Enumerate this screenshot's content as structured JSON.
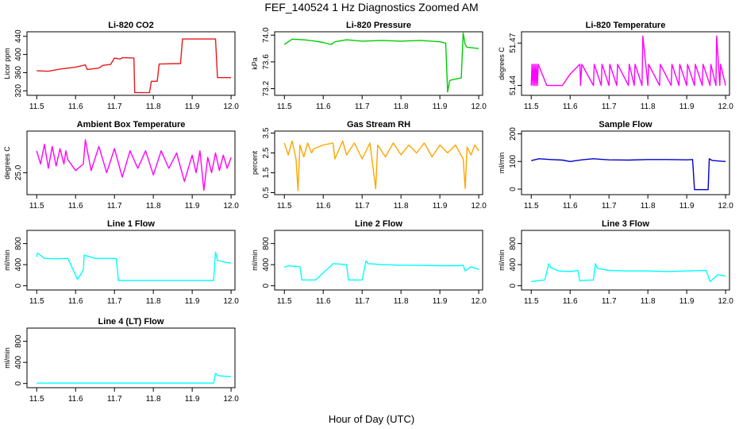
{
  "figure": {
    "title": "FEF_140524  1 Hz Diagnostics Zoomed AM",
    "xlabel": "Hour of Day (UTC)"
  },
  "chart_data": [
    {
      "type": "line",
      "title": "Li-820 CO2",
      "ylabel": "Licor ppm",
      "color": "#e41a1c",
      "xlim": [
        11.475,
        12.01
      ],
      "ylim": [
        310,
        450
      ],
      "x_ticks": [
        "11.5",
        "11.6",
        "11.7",
        "11.8",
        "11.9",
        "12.0"
      ],
      "y_ticks": [
        {
          "v": 320,
          "label": "320"
        },
        {
          "v": 360,
          "label": "360"
        },
        {
          "v": 400,
          "label": "400"
        },
        {
          "v": 440,
          "label": "440"
        }
      ],
      "x": [
        11.5,
        11.53,
        11.56,
        11.6,
        11.625,
        11.63,
        11.66,
        11.67,
        11.69,
        11.7,
        11.715,
        11.72,
        11.75,
        11.752,
        11.79,
        11.795,
        11.81,
        11.815,
        11.87,
        11.875,
        11.96,
        11.965,
        12.0
      ],
      "y": [
        364,
        363,
        368,
        372,
        377,
        367,
        370,
        376,
        378,
        392,
        390,
        393,
        392,
        316,
        316,
        341,
        341,
        379,
        380,
        434,
        434,
        349,
        349
      ]
    },
    {
      "type": "line",
      "title": "Li-820 Pressure",
      "ylabel": "kPa",
      "color": "#00cc00",
      "xlim": [
        11.475,
        12.01
      ],
      "ylim": [
        73.1,
        74.05
      ],
      "x_ticks": [
        "11.5",
        "11.6",
        "11.7",
        "11.8",
        "11.9",
        "12.0"
      ],
      "y_ticks": [
        {
          "v": 73.2,
          "label": "73.2"
        },
        {
          "v": 73.6,
          "label": "73.6"
        },
        {
          "v": 74.0,
          "label": "74.0"
        }
      ],
      "x": [
        11.5,
        11.52,
        11.55,
        11.58,
        11.6,
        11.62,
        11.63,
        11.66,
        11.7,
        11.75,
        11.8,
        11.85,
        11.9,
        11.915,
        11.92,
        11.925,
        11.93,
        11.955,
        11.96,
        11.965,
        11.97,
        12.0
      ],
      "y": [
        73.86,
        73.94,
        73.93,
        73.91,
        73.89,
        73.86,
        73.9,
        73.93,
        73.91,
        73.92,
        73.91,
        73.92,
        73.9,
        73.88,
        73.15,
        73.32,
        73.33,
        73.36,
        74.03,
        73.86,
        73.82,
        73.8
      ]
    },
    {
      "type": "line",
      "title": "Li-820 Temperature",
      "ylabel": "degrees C",
      "color": "#ff00ff",
      "xlim": [
        11.475,
        12.01
      ],
      "ylim": [
        51.433,
        51.478
      ],
      "x_ticks": [
        "11.5",
        "11.6",
        "11.7",
        "11.8",
        "11.9",
        "12.0"
      ],
      "y_ticks": [
        {
          "v": 51.44,
          "label": "51.44"
        },
        {
          "v": 51.47,
          "label": "51.47"
        }
      ],
      "x": [
        11.5,
        11.502,
        11.504,
        11.506,
        11.508,
        11.51,
        11.512,
        11.514,
        11.516,
        11.518,
        11.54,
        11.58,
        11.6,
        11.625,
        11.627,
        11.63,
        11.66,
        11.662,
        11.68,
        11.682,
        11.7,
        11.702,
        11.72,
        11.722,
        11.75,
        11.752,
        11.765,
        11.767,
        11.785,
        11.787,
        11.8,
        11.802,
        11.83,
        11.832,
        11.86,
        11.862,
        11.88,
        11.882,
        11.9,
        11.902,
        11.92,
        11.922,
        11.94,
        11.942,
        11.96,
        11.962,
        11.975,
        11.977,
        11.985,
        11.987,
        12.0
      ],
      "y": [
        51.44,
        51.455,
        51.44,
        51.455,
        51.44,
        51.455,
        51.44,
        51.455,
        51.44,
        51.455,
        51.44,
        51.44,
        51.448,
        51.455,
        51.44,
        51.455,
        51.44,
        51.455,
        51.44,
        51.455,
        51.44,
        51.455,
        51.44,
        51.455,
        51.44,
        51.455,
        51.44,
        51.455,
        51.44,
        51.475,
        51.44,
        51.455,
        51.44,
        51.455,
        51.44,
        51.455,
        51.44,
        51.455,
        51.44,
        51.455,
        51.44,
        51.455,
        51.44,
        51.455,
        51.44,
        51.455,
        51.44,
        51.475,
        51.44,
        51.455,
        51.44
      ]
    },
    {
      "type": "line",
      "title": "Ambient Box Temperature",
      "ylabel": "degrees C",
      "color": "#ff00ff",
      "xlim": [
        11.475,
        12.01
      ],
      "ylim": [
        24.0,
        26.9
      ],
      "x_ticks": [
        "11.5",
        "11.6",
        "11.7",
        "11.8",
        "11.9",
        "12.0"
      ],
      "y_ticks": [
        {
          "v": 25.0,
          "label": "25.0"
        }
      ],
      "x": [
        11.5,
        11.51,
        11.52,
        11.53,
        11.54,
        11.55,
        11.56,
        11.57,
        11.575,
        11.58,
        11.6,
        11.62,
        11.625,
        11.64,
        11.66,
        11.68,
        11.7,
        11.72,
        11.74,
        11.76,
        11.78,
        11.8,
        11.82,
        11.84,
        11.86,
        11.88,
        11.9,
        11.91,
        11.92,
        11.93,
        11.94,
        11.95,
        11.96,
        11.97,
        11.98,
        11.99,
        12.0
      ],
      "y": [
        26.0,
        25.4,
        26.3,
        25.2,
        26.2,
        25.3,
        26.1,
        25.4,
        26.0,
        25.6,
        25.1,
        25.4,
        26.5,
        25.1,
        26.2,
        25.0,
        26.1,
        24.8,
        26.0,
        25.2,
        26.0,
        24.9,
        26.0,
        25.2,
        25.9,
        24.6,
        25.8,
        25.0,
        26.0,
        24.2,
        25.7,
        25.0,
        25.9,
        25.1,
        25.8,
        25.2,
        25.7
      ]
    },
    {
      "type": "line",
      "title": "Gas Stream RH",
      "ylabel": "percent",
      "color": "#ffa500",
      "xlim": [
        11.475,
        12.01
      ],
      "ylim": [
        0.4,
        3.6
      ],
      "x_ticks": [
        "11.5",
        "11.6",
        "11.7",
        "11.8",
        "11.9",
        "12.0"
      ],
      "y_ticks": [
        {
          "v": 0.5,
          "label": "0.5"
        },
        {
          "v": 1.5,
          "label": "1.5"
        },
        {
          "v": 2.5,
          "label": "2.5"
        },
        {
          "v": 3.5,
          "label": "3.5"
        }
      ],
      "x": [
        11.5,
        11.51,
        11.52,
        11.53,
        11.535,
        11.54,
        11.55,
        11.56,
        11.57,
        11.575,
        11.6,
        11.625,
        11.63,
        11.65,
        11.66,
        11.68,
        11.7,
        11.72,
        11.735,
        11.74,
        11.76,
        11.78,
        11.8,
        11.82,
        11.84,
        11.86,
        11.88,
        11.9,
        11.92,
        11.94,
        11.96,
        11.965,
        11.97,
        11.98,
        11.99,
        12.0
      ],
      "y": [
        3.0,
        2.4,
        3.1,
        2.2,
        0.6,
        2.9,
        2.3,
        3.0,
        2.5,
        2.7,
        2.9,
        3.0,
        2.2,
        3.1,
        2.4,
        3.0,
        2.2,
        3.0,
        0.7,
        2.9,
        2.3,
        3.0,
        2.4,
        2.9,
        2.5,
        3.0,
        2.3,
        2.9,
        2.5,
        2.9,
        2.2,
        0.7,
        2.8,
        2.4,
        2.9,
        2.6
      ]
    },
    {
      "type": "line",
      "title": "Sample Flow",
      "ylabel": "ml/min",
      "color": "#0000cc",
      "xlim": [
        11.475,
        12.01
      ],
      "ylim": [
        -20,
        210
      ],
      "x_ticks": [
        "11.5",
        "11.6",
        "11.7",
        "11.8",
        "11.9",
        "12.0"
      ],
      "y_ticks": [
        {
          "v": 0,
          "label": "0"
        },
        {
          "v": 100,
          "label": "100"
        },
        {
          "v": 200,
          "label": "200"
        }
      ],
      "x": [
        11.5,
        11.52,
        11.55,
        11.58,
        11.6,
        11.63,
        11.66,
        11.7,
        11.75,
        11.8,
        11.85,
        11.9,
        11.915,
        11.92,
        11.955,
        11.958,
        11.965,
        11.98,
        12.0
      ],
      "y": [
        103,
        110,
        107,
        105,
        100,
        106,
        110,
        106,
        105,
        107,
        107,
        106,
        107,
        -2,
        -2,
        110,
        104,
        102,
        100
      ]
    },
    {
      "type": "line",
      "title": "Line 1 Flow",
      "ylabel": "ml/min",
      "color": "#00ffff",
      "xlim": [
        11.475,
        12.01
      ],
      "ylim": [
        -80,
        1050
      ],
      "x_ticks": [
        "11.5",
        "11.6",
        "11.7",
        "11.8",
        "11.9",
        "12.0"
      ],
      "y_ticks": [
        {
          "v": 0,
          "label": "0"
        },
        {
          "v": 400,
          "label": "400"
        },
        {
          "v": 800,
          "label": "800"
        }
      ],
      "x": [
        11.5,
        11.502,
        11.52,
        11.55,
        11.58,
        11.605,
        11.62,
        11.622,
        11.65,
        11.7,
        11.705,
        11.71,
        11.8,
        11.9,
        11.955,
        11.96,
        11.965,
        11.97,
        11.99,
        12.0
      ],
      "y": [
        550,
        620,
        520,
        510,
        520,
        120,
        300,
        580,
        520,
        520,
        510,
        100,
        100,
        100,
        100,
        640,
        480,
        470,
        440,
        430
      ]
    },
    {
      "type": "line",
      "title": "Line 2 Flow",
      "ylabel": "ml/min",
      "color": "#00ffff",
      "xlim": [
        11.475,
        12.01
      ],
      "ylim": [
        -80,
        1050
      ],
      "x_ticks": [
        "11.5",
        "11.6",
        "11.7",
        "11.8",
        "11.9",
        "12.0"
      ],
      "y_ticks": [
        {
          "v": 0,
          "label": "0"
        },
        {
          "v": 400,
          "label": "400"
        },
        {
          "v": 800,
          "label": "800"
        }
      ],
      "x": [
        11.5,
        11.51,
        11.54,
        11.545,
        11.58,
        11.62,
        11.625,
        11.66,
        11.665,
        11.7,
        11.71,
        11.715,
        11.75,
        11.8,
        11.85,
        11.9,
        11.95,
        11.96,
        11.965,
        11.98,
        12.0
      ],
      "y": [
        350,
        380,
        360,
        110,
        110,
        380,
        420,
        400,
        110,
        110,
        470,
        420,
        400,
        390,
        385,
        380,
        380,
        390,
        280,
        360,
        310
      ]
    },
    {
      "type": "line",
      "title": "Line 3 Flow",
      "ylabel": "ml/min",
      "color": "#00ffff",
      "xlim": [
        11.475,
        12.01
      ],
      "ylim": [
        -80,
        1050
      ],
      "x_ticks": [
        "11.5",
        "11.6",
        "11.7",
        "11.8",
        "11.9",
        "12.0"
      ],
      "y_ticks": [
        {
          "v": 0,
          "label": "0"
        },
        {
          "v": 400,
          "label": "400"
        },
        {
          "v": 800,
          "label": "800"
        }
      ],
      "x": [
        11.5,
        11.52,
        11.535,
        11.545,
        11.55,
        11.57,
        11.6,
        11.62,
        11.625,
        11.63,
        11.66,
        11.665,
        11.67,
        11.7,
        11.75,
        11.8,
        11.85,
        11.9,
        11.95,
        11.96,
        11.98,
        12.0
      ],
      "y": [
        80,
        100,
        110,
        420,
        350,
        280,
        270,
        290,
        90,
        100,
        110,
        420,
        330,
        290,
        280,
        280,
        270,
        280,
        290,
        80,
        210,
        180
      ]
    },
    {
      "type": "line",
      "title": "Line 4 (LT) Flow",
      "ylabel": "ml/min",
      "color": "#00ffff",
      "xlim": [
        11.475,
        12.01
      ],
      "ylim": [
        -80,
        1050
      ],
      "x_ticks": [
        "11.5",
        "11.6",
        "11.7",
        "11.8",
        "11.9",
        "12.0"
      ],
      "y_ticks": [
        {
          "v": 0,
          "label": "0"
        },
        {
          "v": 400,
          "label": "400"
        },
        {
          "v": 800,
          "label": "800"
        }
      ],
      "x": [
        11.5,
        11.6,
        11.7,
        11.8,
        11.9,
        11.955,
        11.96,
        11.965,
        11.98,
        12.0
      ],
      "y": [
        8,
        8,
        8,
        8,
        8,
        8,
        190,
        150,
        140,
        130
      ]
    }
  ]
}
